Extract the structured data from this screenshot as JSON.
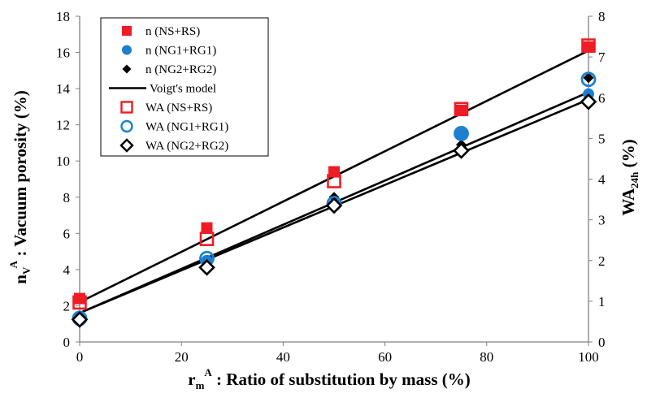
{
  "chart_data": {
    "type": "scatter",
    "title": "",
    "xlabel": {
      "main": "r",
      "sub": "m",
      "sup": "A",
      "rest": " : Ratio of substitution by mass (%)"
    },
    "ylabel": {
      "main": "n",
      "sub": "V",
      "sup": "A",
      "rest": " : Vacuum porosity (%)"
    },
    "y2label": {
      "main": "WA",
      "sub": "24h",
      "rest": " (%)"
    },
    "xlim": [
      0,
      100
    ],
    "ylim": [
      0,
      18
    ],
    "y2lim": [
      0,
      8
    ],
    "x_ticks": [
      0,
      20,
      40,
      60,
      80,
      100
    ],
    "y_ticks": [
      0,
      2,
      4,
      6,
      8,
      10,
      12,
      14,
      16,
      18
    ],
    "y2_ticks": [
      0,
      1,
      2,
      3,
      4,
      5,
      6,
      7,
      8
    ],
    "grid": false,
    "legend_position": "top-left",
    "series": [
      {
        "name": "n (NS+RS)",
        "axis": "left",
        "marker": "filled-square",
        "color": "#ee1c25",
        "x": [
          0,
          25,
          50,
          75,
          100
        ],
        "y": [
          2.4,
          6.3,
          9.4,
          12.8,
          16.3
        ]
      },
      {
        "name": "n (NG1+RG1)",
        "axis": "left",
        "marker": "filled-circle",
        "color": "#1c7fcf",
        "x": [
          0,
          25,
          50,
          75,
          100
        ],
        "y": [
          1.4,
          4.5,
          7.6,
          11.5,
          13.7
        ]
      },
      {
        "name": "n (NG2+RG2)",
        "axis": "left",
        "marker": "filled-diamond",
        "color": "#000000",
        "x": [
          0,
          25,
          50,
          75,
          100
        ],
        "y": [
          1.3,
          4.2,
          8.0,
          10.9,
          14.6
        ]
      },
      {
        "name": "Voigt's model",
        "axis": "left",
        "type": "line",
        "color": "#000000",
        "lines": [
          {
            "x": [
              0,
              100
            ],
            "y": [
              2.2,
              16.1
            ]
          },
          {
            "x": [
              0,
              100
            ],
            "y": [
              1.6,
              13.8
            ]
          },
          {
            "x": [
              0,
              100
            ],
            "y": [
              1.6,
              13.4
            ]
          }
        ]
      },
      {
        "name": "WA (NS+RS)",
        "axis": "right",
        "marker": "open-square",
        "color": "#ee1c25",
        "x": [
          0,
          25,
          50,
          75,
          100
        ],
        "y": [
          0.97,
          2.53,
          3.95,
          5.72,
          7.28
        ]
      },
      {
        "name": "WA (NG1+RG1)",
        "axis": "right",
        "marker": "open-circle",
        "color": "#1c7fcf",
        "x": [
          0,
          25,
          50,
          75,
          100
        ],
        "y": [
          0.58,
          2.05,
          3.4,
          5.12,
          6.45
        ]
      },
      {
        "name": "WA (NG2+RG2)",
        "axis": "right",
        "marker": "open-diamond",
        "color": "#000000",
        "x": [
          0,
          25,
          50,
          75,
          100
        ],
        "y": [
          0.55,
          1.83,
          3.35,
          4.7,
          5.9
        ]
      }
    ]
  }
}
